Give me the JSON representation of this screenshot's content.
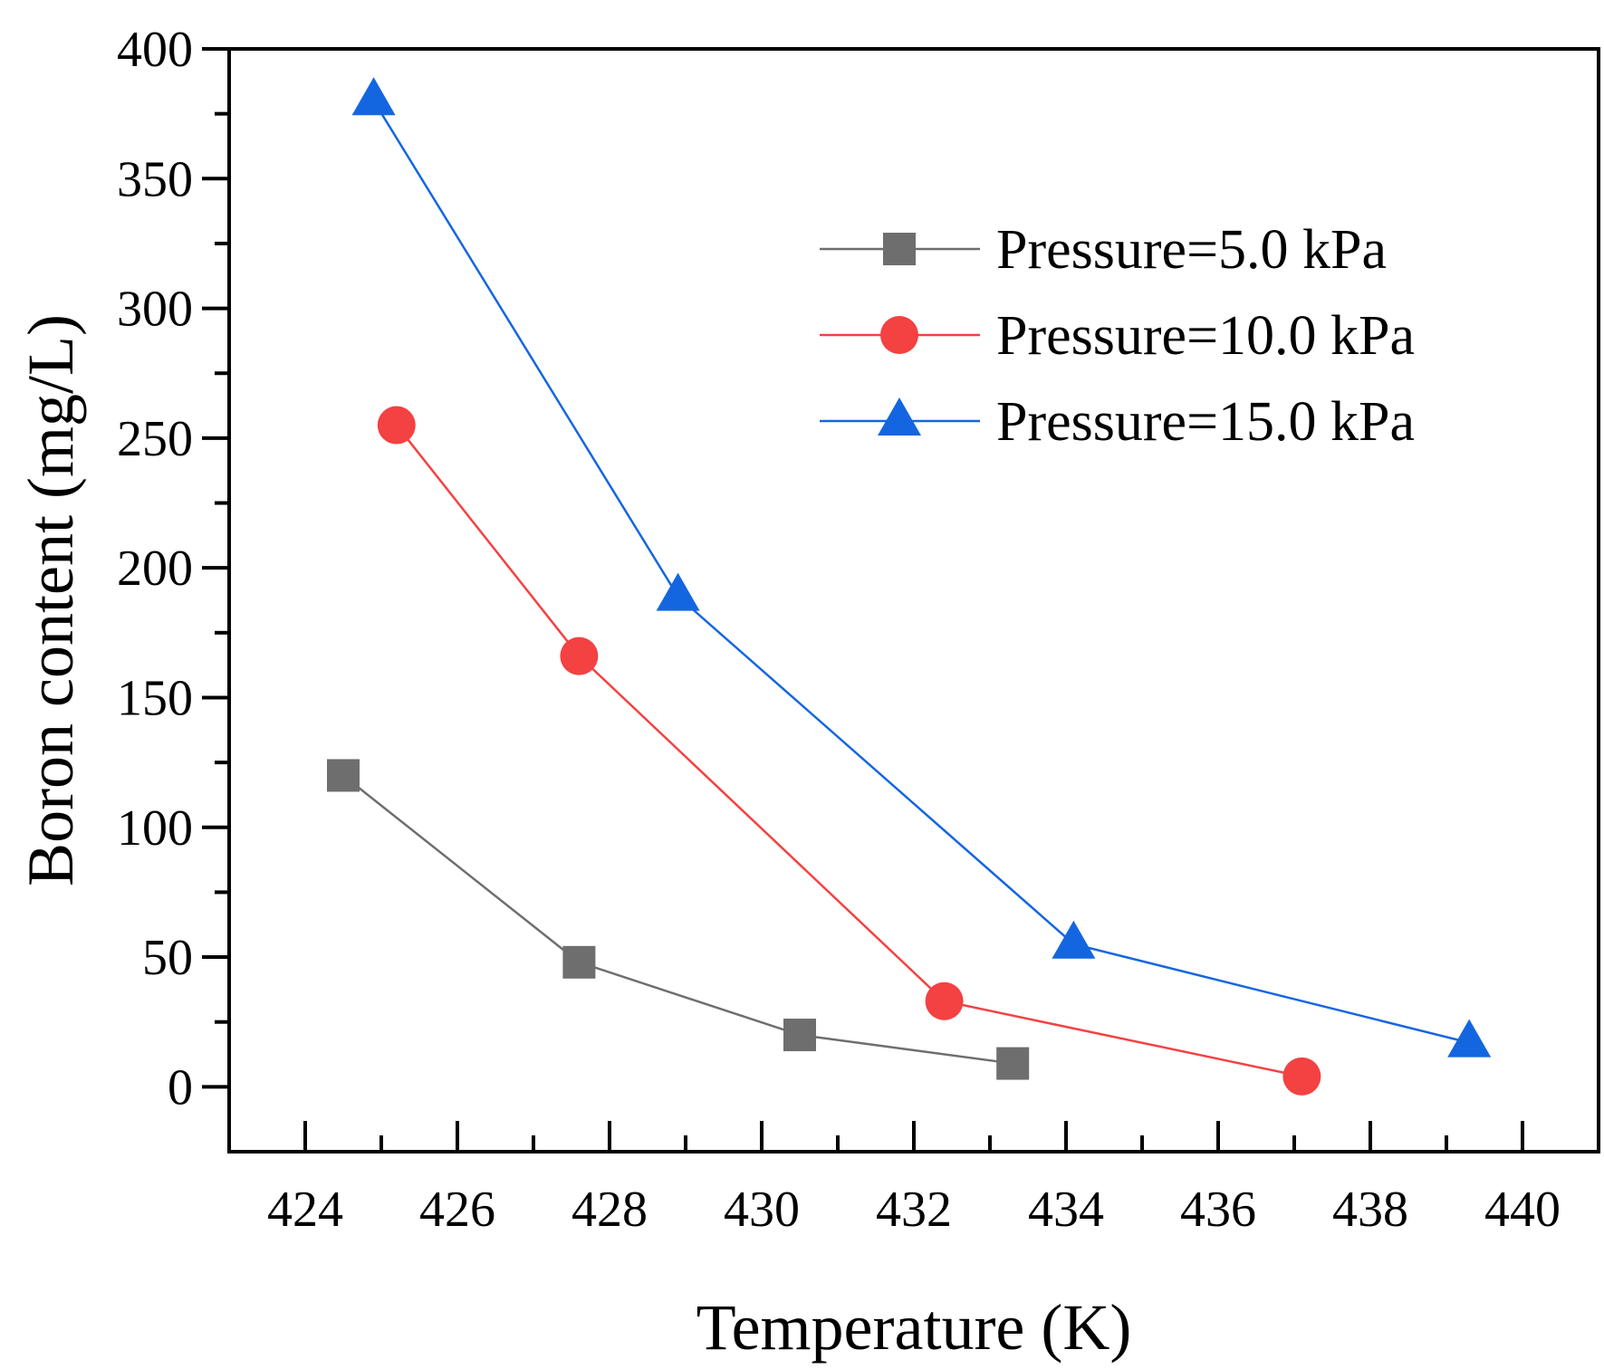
{
  "chart_data": {
    "type": "line",
    "xlabel": "Temperature (K)",
    "ylabel": "Boron content (mg/L)",
    "xlim": [
      423,
      441
    ],
    "ylim": [
      -25,
      400
    ],
    "xticks": [
      424,
      426,
      428,
      430,
      432,
      434,
      436,
      438,
      440
    ],
    "yticks": [
      0,
      50,
      100,
      150,
      200,
      250,
      300,
      350,
      400
    ],
    "x_minor_step": 1,
    "y_minor_step": 25,
    "legend_position": "top-right",
    "series": [
      {
        "name": "Pressure=5.0 kPa",
        "color": "#6e6e6e",
        "marker": "square",
        "points": [
          [
            424.5,
            120
          ],
          [
            427.6,
            48
          ],
          [
            430.5,
            20
          ],
          [
            433.3,
            9
          ]
        ]
      },
      {
        "name": "Pressure=10.0 kPa",
        "color": "#f44142",
        "marker": "circle",
        "points": [
          [
            425.2,
            255
          ],
          [
            427.6,
            166
          ],
          [
            432.4,
            33
          ],
          [
            437.1,
            4
          ]
        ]
      },
      {
        "name": "Pressure=15.0 kPa",
        "color": "#1466e0",
        "marker": "triangle",
        "points": [
          [
            424.9,
            380
          ],
          [
            428.9,
            189
          ],
          [
            434.1,
            55
          ],
          [
            439.3,
            17
          ]
        ]
      }
    ]
  }
}
